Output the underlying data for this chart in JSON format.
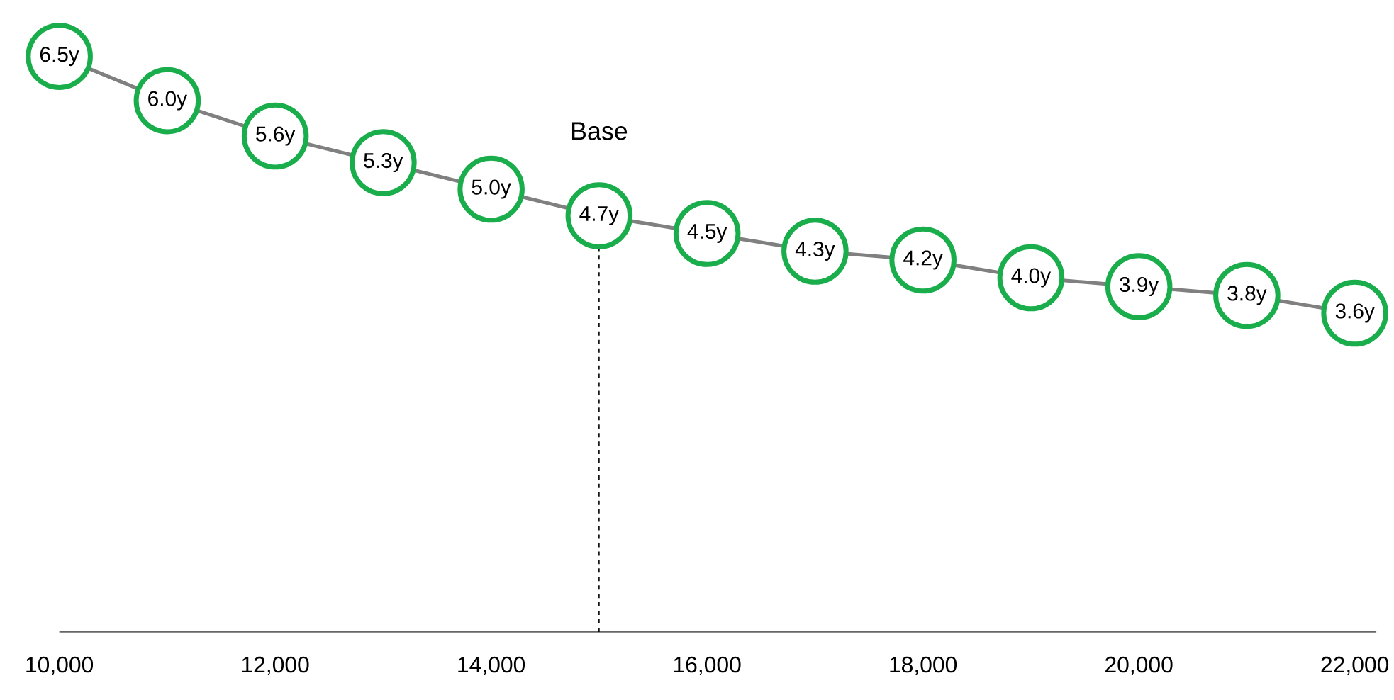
{
  "chart_data": {
    "type": "line",
    "x": [
      10000,
      11000,
      12000,
      13000,
      14000,
      15000,
      16000,
      17000,
      18000,
      19000,
      20000,
      21000,
      22000
    ],
    "series": [
      {
        "color": "#808080",
        "colors": [
          "#1aad4b",
          "#1aad4b",
          "#1aad4b",
          "#1aad4b",
          "#1aad4b",
          "#1aad4b",
          "#1aad4b",
          "#1aad4b",
          "#1aad4b",
          "#1aad4b",
          "#1aad4b",
          "#1aad4b",
          "#1aad4b"
        ],
        "values": [
          6.5,
          6.0,
          5.6,
          5.3,
          5.0,
          4.7,
          4.5,
          4.3,
          4.2,
          4.0,
          3.9,
          3.8,
          3.6
        ],
        "value_labels": [
          "6.5y",
          "6.0y",
          "5.6y",
          "5.3y",
          "5.0y",
          "4.7y",
          "4.5y",
          "4.3y",
          "4.2y",
          "4.0y",
          "3.9y",
          "3.8y",
          "3.6y"
        ]
      }
    ],
    "xlim": [
      10000,
      22200
    ],
    "xticks": [
      {
        "value": 10000,
        "label": "10,000"
      },
      {
        "value": 12000,
        "label": "12,000"
      },
      {
        "value": 14000,
        "label": "14,000"
      },
      {
        "value": 16000,
        "label": "16,000"
      },
      {
        "value": 18000,
        "label": "18,000"
      },
      {
        "value": 20000,
        "label": "20,000"
      },
      {
        "value": 22000,
        "label": "22,000"
      }
    ],
    "tick_labels": "x",
    "marker": "circle",
    "line_style": "solid",
    "ref_lines": [
      {
        "axis": "x",
        "value": 15000,
        "label": "Base",
        "line_style": "dashed",
        "color": "#000000"
      }
    ]
  }
}
